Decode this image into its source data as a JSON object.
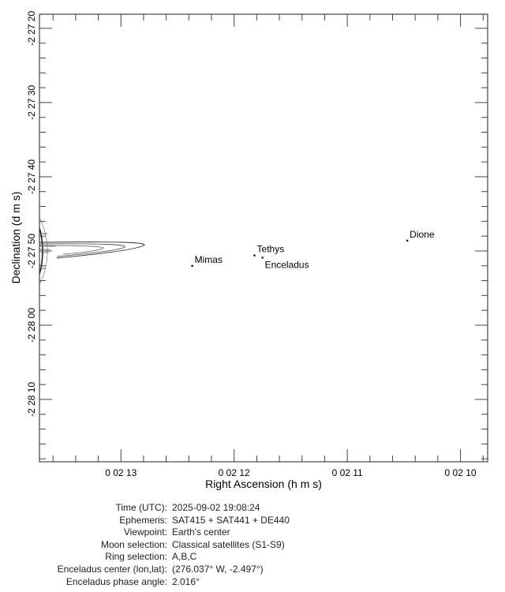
{
  "chart_data": {
    "type": "scatter",
    "xlabel": "Right Ascension (h m s)",
    "ylabel": "Declination (d m s)",
    "x_ticks": [
      {
        "value_s": 13,
        "label": "0 02 13"
      },
      {
        "value_s": 12,
        "label": "0 02 12"
      },
      {
        "value_s": 11,
        "label": "0 02 11"
      },
      {
        "value_s": 10,
        "label": "0 02 10"
      }
    ],
    "y_ticks": [
      {
        "value_s": 20,
        "label": "-2 27 20"
      },
      {
        "value_s": 30,
        "label": "-2 27 30"
      },
      {
        "value_s": 40,
        "label": "-2 27 40"
      },
      {
        "value_s": 50,
        "label": "-2 27 50"
      },
      {
        "value_s": 60,
        "label": "-2 28 00"
      },
      {
        "value_s": 70,
        "label": "-2 28 10"
      }
    ],
    "x_axis_reversed": true,
    "xlim_s_after_0h02m": [
      13.72,
      9.76
    ],
    "ylim_s_after_m2d27m": [
      18.1,
      78.4
    ],
    "points": [
      {
        "name": "Mimas",
        "ra_s": 12.37,
        "dec_s": 52.0
      },
      {
        "name": "Tethys",
        "ra_s": 11.82,
        "dec_s": 50.6
      },
      {
        "name": "Enceladus",
        "ra_s": 11.75,
        "dec_s": 50.9
      },
      {
        "name": "Dione",
        "ra_s": 10.47,
        "dec_s": 48.6
      }
    ],
    "planet": "Saturn",
    "rings_shown": "A,B,C"
  },
  "info": [
    {
      "label": "Time (UTC):",
      "value": "2025-09-02 19:08:24"
    },
    {
      "label": "Ephemeris:",
      "value": "SAT415 + SAT441 + DE440"
    },
    {
      "label": "Viewpoint:",
      "value": "Earth's center"
    },
    {
      "label": "Moon selection:",
      "value": "Classical satellites (S1-S9)"
    },
    {
      "label": "Ring selection:",
      "value": "A,B,C"
    },
    {
      "label": "Enceladus center (lon,lat):",
      "value": "(276.037° W, -2.497°)"
    },
    {
      "label": "Enceladus phase angle:",
      "value": " 2.016°"
    }
  ]
}
